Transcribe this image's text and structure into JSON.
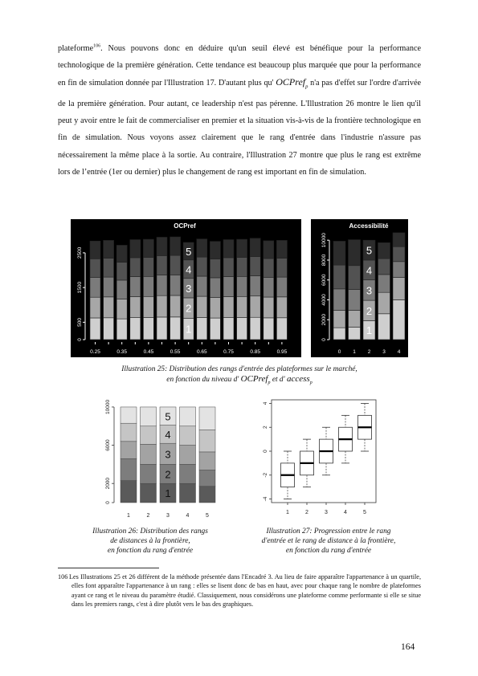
{
  "paragraph": {
    "t1": "plateforme",
    "fnref": "106",
    "t2": ". Nous pouvons donc en déduire qu'un seuil élevé est bénéfique pour la performance technologique de la première génération. Cette tendance est beaucoup plus marquée que pour la performance en fin de simulation donnée par l'Illustration 17. D'autant plus qu'",
    "math_main": "OCPref",
    "math_sub": "p",
    "t3": "n'a pas d'effet sur l'ordre d'arrivée de la première génération. Pour autant, ce leadership n'est pas pérenne. L'Illustration 26 montre le lien qu'il peut y avoir entre le fait de commercialiser en premier et la situation vis-à-vis de la frontière technologique en fin de simulation. Nous voyons assez clairement que le rang d'entrée dans l'industrie n'assure pas nécessairement la même place à la sortie. Au contraire, l'Illustration 27 montre que plus le rang est extrême lors de l’entrée (1er ou dernier) plus le changement de rang est important en fin de simulation."
  },
  "captions": {
    "fig25_line1": "Illustration 25: Distribution des rangs d'entrée des plateformes sur le marché,",
    "fig25_line2a": "en fonction du niveau d'",
    "fig25_m1": "OCPref",
    "fig25_s1": "p",
    "fig25_mid": "et d'",
    "fig25_m2": "access",
    "fig25_s2": "p",
    "fig26_l1": "Illustration 26: Distribution des rangs",
    "fig26_l2": "de distances à la frontière,",
    "fig26_l3": "en fonction du rang d'entrée",
    "fig27_l1": "Illustration 27: Progression entre le rang",
    "fig27_l2": "d'entrée et le rang de distance à la frontière,",
    "fig27_l3": "en fonction du rang d'entrée"
  },
  "footnote": {
    "number": "106",
    "text": "Les Illustrations 25 et 26 différent de la méthode présentée dans l'Encadré 3. Au lieu de faire apparaître l'appartenance à un quartile, elles font apparaître l'appartenance à un rang : elles se lisent donc de bas en haut, avec pour chaque rang le nombre de plateformes ayant ce rang et le niveau du paramètre étudié. Classiquement, nous considérons une plateforme comme performante si elle se situe dans les premiers rangs, c'est à dire plutôt vers le bas des graphiques."
  },
  "page_number": "164",
  "chart_data": [
    {
      "type": "bar",
      "stacked": true,
      "title": "OCPref",
      "categories": [
        "0.25",
        "0.3",
        "0.35",
        "0.4",
        "0.45",
        "0.5",
        "0.55",
        "0.6",
        "0.65",
        "0.7",
        "0.75",
        "0.8",
        "0.85",
        "0.9",
        "0.95"
      ],
      "x_tick_labels": [
        "0.25",
        "0.35",
        "0.45",
        "0.55",
        "0.65",
        "0.75",
        "0.85",
        "0.95"
      ],
      "y_ticks": [
        "0",
        "500",
        "1500",
        "2500"
      ],
      "ylim": [
        0,
        3100
      ],
      "segment_labels": [
        "1",
        "2",
        "3",
        "4",
        "5"
      ],
      "totals": [
        2840,
        2860,
        2720,
        2880,
        2890,
        2950,
        2960,
        2800,
        2900,
        2830,
        2880,
        2890,
        2920,
        2850,
        2860
      ],
      "fractions": [
        0.22,
        0.21,
        0.2,
        0.19,
        0.18
      ],
      "colors": [
        "#cfcfcf",
        "#a7a7a7",
        "#7b7b7b",
        "#525252",
        "#2c2c2c"
      ],
      "background": "#000000"
    },
    {
      "type": "bar",
      "stacked": true,
      "title": "Accessibilité",
      "categories": [
        "0",
        "1",
        "2",
        "3",
        "4"
      ],
      "y_ticks": [
        "0",
        "2000",
        "4000",
        "6000",
        "8000",
        "10000"
      ],
      "ylim": [
        0,
        10500
      ],
      "segment_labels": [
        "1",
        "2",
        "3",
        "4",
        "5"
      ],
      "segments": [
        [
          1200,
          1750,
          2150,
          2400,
          2400
        ],
        [
          1250,
          1700,
          2100,
          2400,
          2600
        ],
        [
          1900,
          2050,
          2050,
          2000,
          2000
        ],
        [
          2600,
          2150,
          1800,
          1600,
          1600
        ],
        [
          4000,
          2250,
          1600,
          1500,
          1400
        ]
      ],
      "colors": [
        "#cfcfcf",
        "#a7a7a7",
        "#7b7b7b",
        "#525252",
        "#2c2c2c"
      ],
      "background": "#000000"
    },
    {
      "type": "bar",
      "stacked": true,
      "categories": [
        "1",
        "2",
        "3",
        "4",
        "5"
      ],
      "y_ticks": [
        "0",
        "2000",
        "6000",
        "10000"
      ],
      "ylim": [
        0,
        10500
      ],
      "segment_labels": [
        "1",
        "2",
        "3",
        "4",
        "5"
      ],
      "totals": [
        10000,
        10000,
        10000,
        10000,
        10000
      ],
      "fractions": [
        [
          0.23,
          0.23,
          0.18,
          0.19,
          0.17
        ],
        [
          0.2,
          0.2,
          0.21,
          0.19,
          0.2
        ],
        [
          0.2,
          0.2,
          0.22,
          0.19,
          0.19
        ],
        [
          0.2,
          0.2,
          0.2,
          0.2,
          0.2
        ],
        [
          0.17,
          0.17,
          0.19,
          0.23,
          0.24
        ]
      ],
      "colors": [
        "#5a5a5a",
        "#7d7d7d",
        "#a3a3a3",
        "#c5c5c5",
        "#e3e3e3"
      ]
    },
    {
      "type": "box",
      "categories": [
        "1",
        "2",
        "3",
        "4",
        "5"
      ],
      "y_ticks": [
        "-4",
        "-2",
        "0",
        "2",
        "4"
      ],
      "ylim": [
        -4.3,
        4.3
      ],
      "boxes": [
        {
          "min": -4,
          "q1": -3,
          "median": -2,
          "q3": -1,
          "max": 0
        },
        {
          "min": -3,
          "q1": -2,
          "median": -1,
          "q3": 0,
          "max": 1
        },
        {
          "min": -2,
          "q1": -1,
          "median": 0,
          "q3": 1,
          "max": 2
        },
        {
          "min": -1,
          "q1": 0,
          "median": 1,
          "q3": 2,
          "max": 3
        },
        {
          "min": 0,
          "q1": 1,
          "median": 2,
          "q3": 3,
          "max": 4
        }
      ]
    }
  ]
}
